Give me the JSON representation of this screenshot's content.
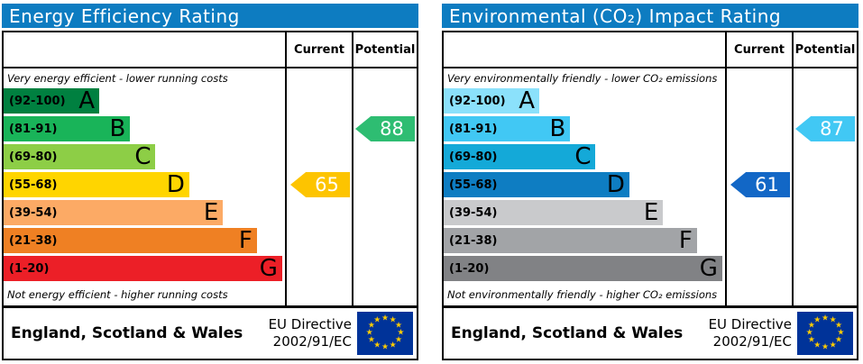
{
  "columns": {
    "current": "Current",
    "potential": "Potential"
  },
  "footer": {
    "region": "England, Scotland & Wales",
    "directive_line1": "EU Directive",
    "directive_line2": "2002/91/EC",
    "flag": {
      "bg": "#003399",
      "star_color": "#ffcc00",
      "star_count": 12
    }
  },
  "header_bg": "#0d7cc1",
  "chart_data": [
    {
      "type": "bar",
      "title": "Energy Efficiency Rating",
      "top_note": "Very energy efficient - lower running costs",
      "bottom_note": "Not energy efficient - higher running costs",
      "scale": {
        "min": 1,
        "max": 100
      },
      "bands": [
        {
          "letter": "A",
          "range": "(92-100)",
          "min": 92,
          "max": 100,
          "color": "#008040",
          "width_pct": 34
        },
        {
          "letter": "B",
          "range": "(81-91)",
          "min": 81,
          "max": 91,
          "color": "#19b459",
          "width_pct": 45
        },
        {
          "letter": "C",
          "range": "(69-80)",
          "min": 69,
          "max": 80,
          "color": "#8dce46",
          "width_pct": 54
        },
        {
          "letter": "D",
          "range": "(55-68)",
          "min": 55,
          "max": 68,
          "color": "#ffd500",
          "width_pct": 66
        },
        {
          "letter": "E",
          "range": "(39-54)",
          "min": 39,
          "max": 54,
          "color": "#fcaa65",
          "width_pct": 78
        },
        {
          "letter": "F",
          "range": "(21-38)",
          "min": 21,
          "max": 38,
          "color": "#ef8023",
          "width_pct": 90
        },
        {
          "letter": "G",
          "range": "(1-20)",
          "min": 1,
          "max": 20,
          "color": "#ec1f27",
          "width_pct": 99
        }
      ],
      "current": {
        "value": 65,
        "band": "D",
        "band_index": 3,
        "color": "#fdc400"
      },
      "potential": {
        "value": 88,
        "band": "B",
        "band_index": 1,
        "color": "#2ebd72"
      }
    },
    {
      "type": "bar",
      "title": "Environmental (CO₂) Impact Rating",
      "top_note": "Very environmentally friendly - lower CO₂ emissions",
      "bottom_note": "Not environmentally friendly - higher CO₂ emissions",
      "scale": {
        "min": 1,
        "max": 100
      },
      "bands": [
        {
          "letter": "A",
          "range": "(92-100)",
          "min": 92,
          "max": 100,
          "color": "#8be1fb",
          "width_pct": 34
        },
        {
          "letter": "B",
          "range": "(81-91)",
          "min": 81,
          "max": 91,
          "color": "#41c8f4",
          "width_pct": 45
        },
        {
          "letter": "C",
          "range": "(69-80)",
          "min": 69,
          "max": 80,
          "color": "#14a9d8",
          "width_pct": 54
        },
        {
          "letter": "D",
          "range": "(55-68)",
          "min": 55,
          "max": 68,
          "color": "#0e7dc2",
          "width_pct": 66
        },
        {
          "letter": "E",
          "range": "(39-54)",
          "min": 39,
          "max": 54,
          "color": "#c9cacc",
          "width_pct": 78
        },
        {
          "letter": "F",
          "range": "(21-38)",
          "min": 21,
          "max": 38,
          "color": "#a2a4a7",
          "width_pct": 90
        },
        {
          "letter": "G",
          "range": "(1-20)",
          "min": 1,
          "max": 20,
          "color": "#818285",
          "width_pct": 99
        }
      ],
      "current": {
        "value": 61,
        "band": "D",
        "band_index": 3,
        "color": "#1267c6"
      },
      "potential": {
        "value": 87,
        "band": "B",
        "band_index": 1,
        "color": "#41c8f4"
      }
    }
  ]
}
